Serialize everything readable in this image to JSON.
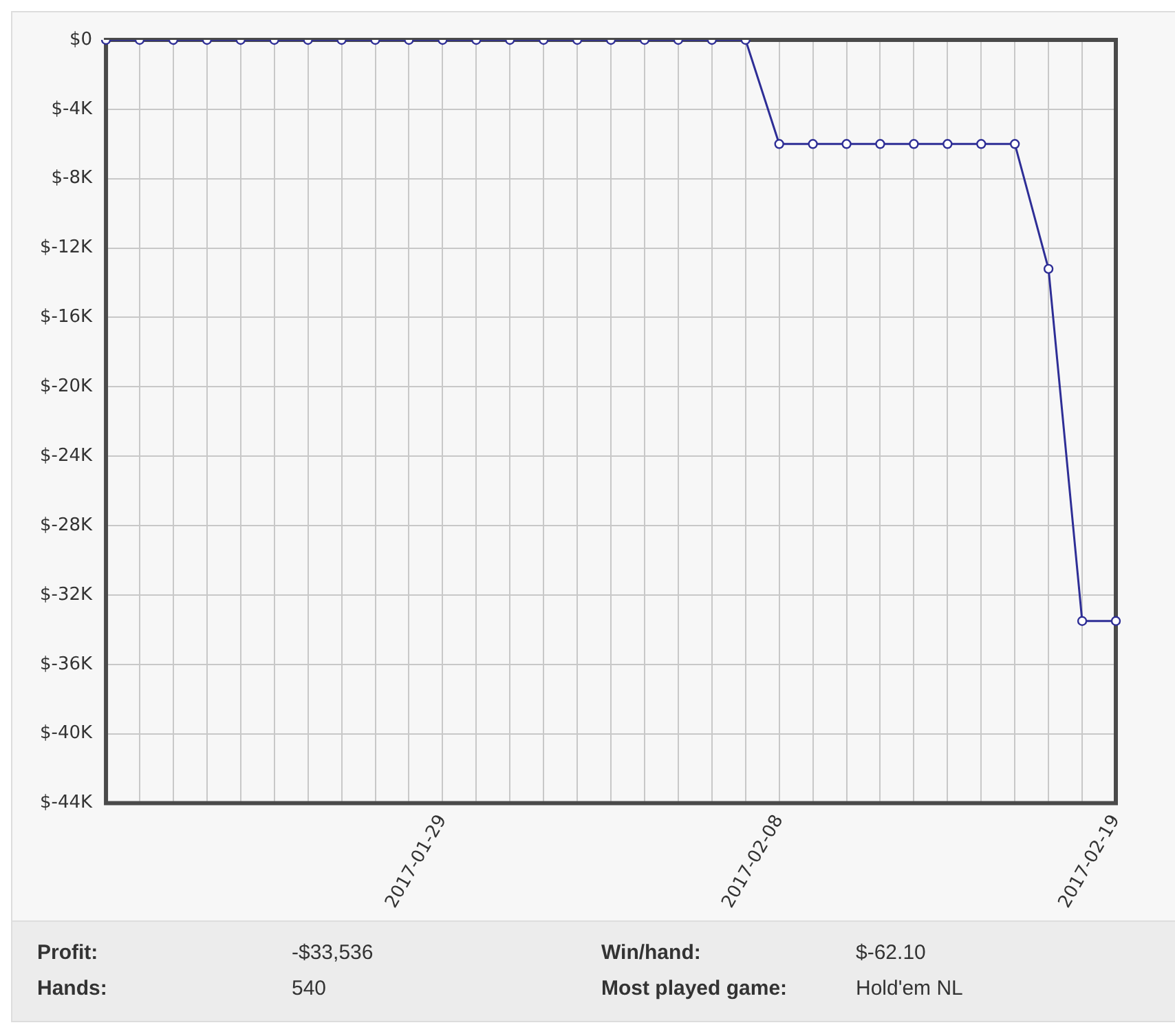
{
  "chart_data": {
    "type": "line",
    "categories": [
      null,
      null,
      null,
      null,
      null,
      null,
      null,
      null,
      null,
      null,
      "2017-01-29",
      null,
      null,
      null,
      null,
      null,
      null,
      null,
      null,
      null,
      "2017-02-08",
      null,
      null,
      null,
      null,
      null,
      null,
      null,
      null,
      null,
      "2017-02-19"
    ],
    "series": [
      {
        "color": "#2e2e96",
        "values": [
          0,
          0,
          0,
          0,
          0,
          0,
          0,
          0,
          0,
          0,
          0,
          0,
          0,
          0,
          0,
          0,
          0,
          0,
          0,
          0,
          -6000,
          -6000,
          -6000,
          -6000,
          -6000,
          -6000,
          -6000,
          -6000,
          -13200,
          -33500,
          -33500
        ]
      }
    ],
    "ylim": [
      -44000,
      0
    ],
    "yticks": [
      {
        "value": 0,
        "label": "$0"
      },
      {
        "value": -4000,
        "label": "$-4K"
      },
      {
        "value": -8000,
        "label": "$-8K"
      },
      {
        "value": -12000,
        "label": "$-12K"
      },
      {
        "value": -16000,
        "label": "$-16K"
      },
      {
        "value": -20000,
        "label": "$-20K"
      },
      {
        "value": -24000,
        "label": "$-24K"
      },
      {
        "value": -28000,
        "label": "$-28K"
      },
      {
        "value": -32000,
        "label": "$-32K"
      },
      {
        "value": -36000,
        "label": "$-36K"
      },
      {
        "value": -40000,
        "label": "$-40K"
      },
      {
        "value": -44000,
        "label": "$-44K"
      }
    ],
    "grid": true,
    "legend": false,
    "marker": "circle",
    "line_style": "solid",
    "annotations": [
      "Profit:",
      "-$33,536",
      "Win/hand:",
      "$-62.10",
      "Hands:",
      "540",
      "Most played game:",
      "Hold'em NL"
    ]
  }
}
